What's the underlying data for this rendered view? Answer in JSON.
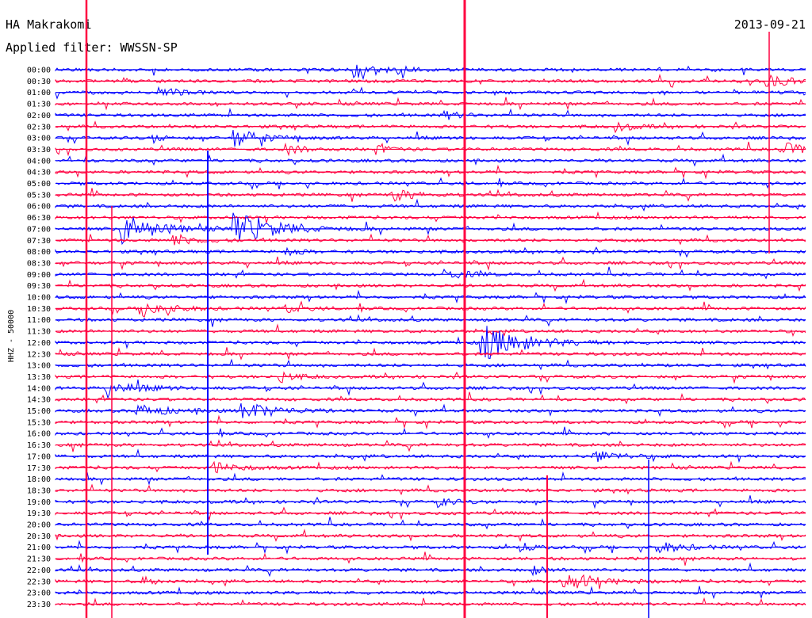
{
  "header": {
    "station": "HA Makrakomi",
    "date": "2013-09-21",
    "filter_text": "Applied filter: WWSSN-SP"
  },
  "chart_data": {
    "type": "line",
    "title": "HA Makrakomi",
    "subtitle": "Applied filter: WWSSN-SP",
    "ylabel": "HHZ - 50000",
    "trace_colors": [
      "#0000ff",
      "#ff0040"
    ],
    "rows": [
      "00:00",
      "00:30",
      "01:00",
      "01:30",
      "02:00",
      "02:30",
      "03:00",
      "03:30",
      "04:00",
      "04:30",
      "05:00",
      "05:30",
      "06:00",
      "06:30",
      "07:00",
      "07:30",
      "08:00",
      "08:30",
      "09:00",
      "09:30",
      "10:00",
      "10:30",
      "11:00",
      "11:30",
      "12:00",
      "12:30",
      "13:00",
      "13:30",
      "14:00",
      "14:30",
      "15:00",
      "15:30",
      "16:00",
      "16:30",
      "17:00",
      "17:30",
      "18:00",
      "18:30",
      "19:00",
      "19:30",
      "20:00",
      "20:30",
      "21:00",
      "21:30",
      "22:00",
      "22:30",
      "23:00",
      "23:30"
    ],
    "events": [
      {
        "row": 0,
        "t": 0.4,
        "amp": 1.8,
        "dur": 0.025
      },
      {
        "row": 0,
        "t": 0.46,
        "amp": 0.9,
        "dur": 0.015
      },
      {
        "row": 1,
        "t": 0.95,
        "amp": 1.2,
        "dur": 0.03
      },
      {
        "row": 2,
        "t": 0.14,
        "amp": 1.3,
        "dur": 0.02
      },
      {
        "row": 4,
        "t": 0.52,
        "amp": 0.9,
        "dur": 0.02
      },
      {
        "row": 5,
        "t": 0.75,
        "amp": 1.0,
        "dur": 0.02
      },
      {
        "row": 6,
        "t": 0.24,
        "amp": 2.0,
        "dur": 0.03
      },
      {
        "row": 6,
        "t": 0.13,
        "amp": 0.9,
        "dur": 0.015
      },
      {
        "row": 7,
        "t": 0.31,
        "amp": 1.0,
        "dur": 0.02
      },
      {
        "row": 7,
        "t": 0.43,
        "amp": 0.8,
        "dur": 0.02
      },
      {
        "row": 7,
        "t": 0.97,
        "amp": 1.4,
        "dur": 0.03
      },
      {
        "row": 11,
        "t": 0.45,
        "amp": 1.3,
        "dur": 0.03
      },
      {
        "row": 14,
        "t": 0.09,
        "amp": 3.5,
        "dur": 0.04
      },
      {
        "row": 14,
        "t": 0.24,
        "amp": 3.5,
        "dur": 0.05
      },
      {
        "row": 15,
        "t": 0.16,
        "amp": 1.3,
        "dur": 0.025
      },
      {
        "row": 16,
        "t": 0.31,
        "amp": 1.0,
        "dur": 0.015
      },
      {
        "row": 18,
        "t": 0.52,
        "amp": 1.0,
        "dur": 0.03
      },
      {
        "row": 21,
        "t": 0.12,
        "amp": 2.0,
        "dur": 0.03
      },
      {
        "row": 21,
        "t": 0.31,
        "amp": 1.0,
        "dur": 0.02
      },
      {
        "row": 24,
        "t": 0.57,
        "amp": 4.0,
        "dur": 0.05
      },
      {
        "row": 27,
        "t": 0.3,
        "amp": 1.2,
        "dur": 0.02
      },
      {
        "row": 28,
        "t": 0.07,
        "amp": 1.4,
        "dur": 0.04
      },
      {
        "row": 30,
        "t": 0.11,
        "amp": 1.3,
        "dur": 0.04
      },
      {
        "row": 30,
        "t": 0.25,
        "amp": 2.0,
        "dur": 0.04
      },
      {
        "row": 34,
        "t": 0.72,
        "amp": 1.3,
        "dur": 0.03
      },
      {
        "row": 35,
        "t": 0.21,
        "amp": 1.3,
        "dur": 0.03
      },
      {
        "row": 38,
        "t": 0.51,
        "amp": 1.0,
        "dur": 0.02
      },
      {
        "row": 42,
        "t": 0.8,
        "amp": 1.3,
        "dur": 0.035
      },
      {
        "row": 42,
        "t": 0.62,
        "amp": 1.0,
        "dur": 0.015
      },
      {
        "row": 44,
        "t": 0.64,
        "amp": 0.9,
        "dur": 0.015
      },
      {
        "row": 45,
        "t": 0.12,
        "amp": 0.9,
        "dur": 0.015
      },
      {
        "row": 45,
        "t": 0.68,
        "amp": 2.0,
        "dur": 0.04
      }
    ]
  }
}
